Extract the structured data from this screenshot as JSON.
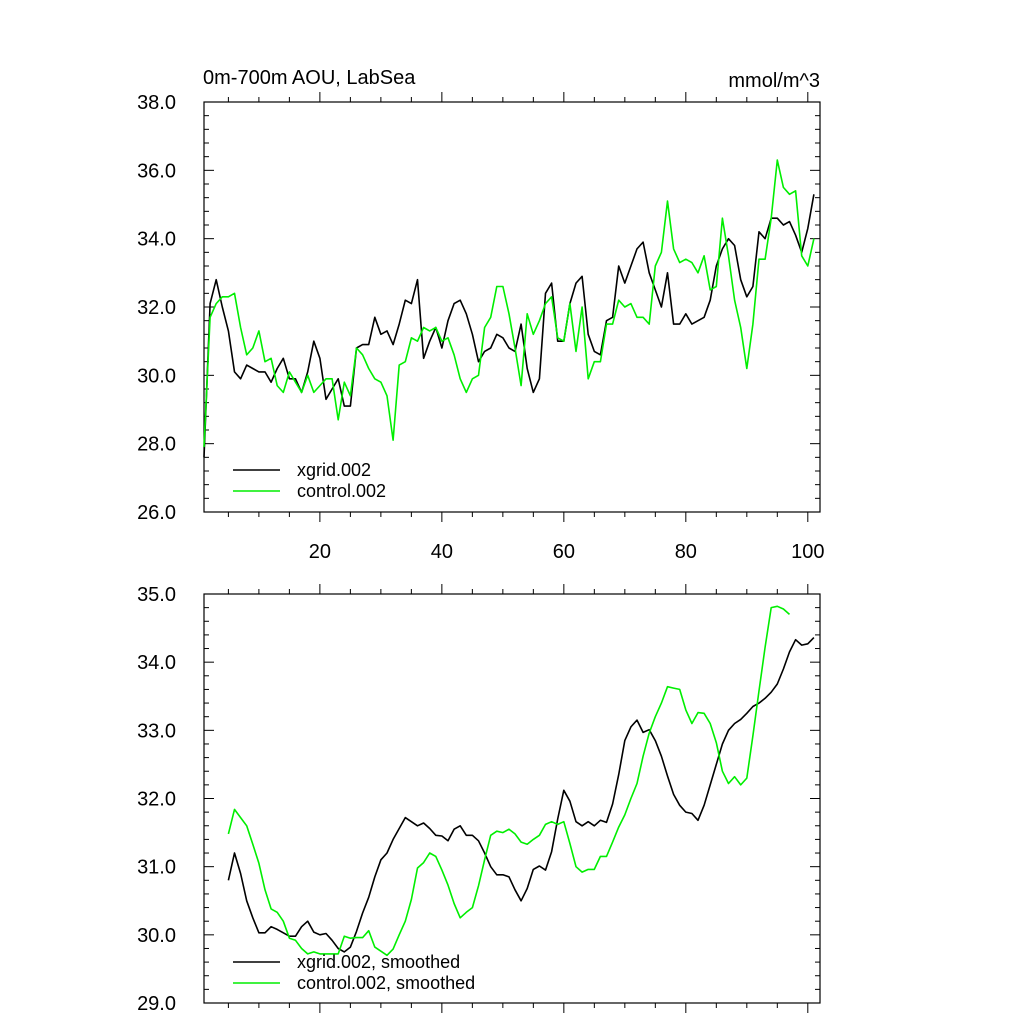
{
  "chart_data": [
    {
      "type": "line",
      "title": "0m-700m AOU, LabSea",
      "units": "mmol/m^3",
      "xlim": [
        1,
        102
      ],
      "ylim": [
        26.0,
        38.0
      ],
      "yticks": [
        26.0,
        28.0,
        30.0,
        32.0,
        34.0,
        36.0,
        38.0
      ],
      "ytick_labels": [
        "26.0",
        "28.0",
        "30.0",
        "32.0",
        "34.0",
        "36.0",
        "38.0"
      ],
      "xticks": [
        20,
        40,
        60,
        80,
        100
      ],
      "xtick_labels": [
        "20",
        "40",
        "60",
        "80",
        "100"
      ],
      "legend_position": "bottom-left",
      "series": [
        {
          "name": "xgrid.002",
          "color": "#000000",
          "x_start": 1,
          "values": [
            27.6,
            32.1,
            32.8,
            32.0,
            31.3,
            30.1,
            29.9,
            30.3,
            30.2,
            30.1,
            30.1,
            29.8,
            30.2,
            30.5,
            29.9,
            29.9,
            29.5,
            30.1,
            31.0,
            30.5,
            29.3,
            29.6,
            29.9,
            29.1,
            29.1,
            30.8,
            30.9,
            30.9,
            31.7,
            31.2,
            31.3,
            30.9,
            31.5,
            32.2,
            32.1,
            32.8,
            30.5,
            31.0,
            31.4,
            30.8,
            31.6,
            32.1,
            32.2,
            31.8,
            31.2,
            30.4,
            30.7,
            30.8,
            31.2,
            31.1,
            30.8,
            30.7,
            31.5,
            30.2,
            29.5,
            29.9,
            32.4,
            32.7,
            31.0,
            31.0,
            32.1,
            32.7,
            32.9,
            31.2,
            30.7,
            30.6,
            31.6,
            31.7,
            33.2,
            32.7,
            33.2,
            33.7,
            33.9,
            33.0,
            32.5,
            32.0,
            33.0,
            31.5,
            31.5,
            31.8,
            31.5,
            31.6,
            31.7,
            32.2,
            33.2,
            33.7,
            34.0,
            33.8,
            32.8,
            32.3,
            32.6,
            34.2,
            34.0,
            34.6,
            34.6,
            34.4,
            34.5,
            34.1,
            33.6,
            34.3,
            35.3
          ]
        },
        {
          "name": "control.002",
          "color": "#00ee00",
          "x_start": 1,
          "values": [
            27.9,
            31.7,
            32.1,
            32.3,
            32.3,
            32.4,
            31.4,
            30.6,
            30.8,
            31.3,
            30.4,
            30.5,
            29.7,
            29.5,
            30.1,
            29.8,
            29.5,
            30.0,
            29.5,
            29.7,
            29.9,
            29.9,
            28.7,
            29.8,
            29.4,
            30.8,
            30.6,
            30.2,
            29.9,
            29.8,
            29.4,
            28.1,
            30.3,
            30.4,
            31.1,
            31.0,
            31.4,
            31.3,
            31.4,
            31.0,
            31.1,
            30.6,
            29.9,
            29.5,
            29.9,
            30.0,
            31.4,
            31.7,
            32.6,
            32.6,
            31.8,
            30.8,
            29.7,
            31.8,
            31.2,
            31.6,
            32.1,
            32.3,
            31.1,
            31.0,
            32.1,
            30.7,
            32.0,
            29.9,
            30.4,
            30.4,
            31.5,
            31.5,
            32.2,
            32.0,
            32.1,
            31.7,
            31.7,
            31.5,
            33.2,
            33.6,
            35.1,
            33.7,
            33.3,
            33.4,
            33.3,
            33.0,
            33.5,
            32.5,
            32.6,
            34.6,
            33.5,
            32.2,
            31.4,
            30.2,
            31.5,
            33.4,
            33.4,
            34.6,
            36.3,
            35.5,
            35.3,
            35.4,
            33.5,
            33.2,
            34.0
          ]
        }
      ]
    },
    {
      "type": "line",
      "xlim": [
        1,
        102
      ],
      "ylim": [
        29.0,
        35.0
      ],
      "yticks": [
        29.0,
        30.0,
        31.0,
        32.0,
        33.0,
        34.0,
        35.0
      ],
      "ytick_labels": [
        "29.0",
        "30.0",
        "31.0",
        "32.0",
        "33.0",
        "34.0",
        "35.0"
      ],
      "xticks": [
        20,
        40,
        60,
        80,
        100
      ],
      "legend_position": "bottom-left",
      "series": [
        {
          "name": "xgrid.002, smoothed",
          "color": "#000000",
          "x_start": 5,
          "values": [
            30.8,
            31.2,
            30.9,
            30.5,
            30.25,
            30.03,
            30.03,
            30.12,
            30.08,
            30.03,
            29.98,
            29.98,
            30.12,
            30.2,
            30.04,
            30.0,
            30.02,
            29.92,
            29.8,
            29.75,
            29.82,
            30.05,
            30.32,
            30.55,
            30.85,
            31.1,
            31.2,
            31.4,
            31.56,
            31.72,
            31.66,
            31.6,
            31.64,
            31.56,
            31.46,
            31.45,
            31.38,
            31.55,
            31.6,
            31.46,
            31.46,
            31.38,
            31.2,
            31.0,
            30.88,
            30.88,
            30.85,
            30.66,
            30.5,
            30.68,
            30.96,
            31.01,
            30.95,
            31.22,
            31.7,
            32.12,
            31.96,
            31.66,
            31.6,
            31.66,
            31.6,
            31.68,
            31.65,
            31.92,
            32.35,
            32.85,
            33.05,
            33.15,
            32.97,
            33.01,
            32.85,
            32.62,
            32.33,
            32.06,
            31.9,
            31.8,
            31.78,
            31.68,
            31.9,
            32.2,
            32.5,
            32.8,
            33.0,
            33.1,
            33.16,
            33.25,
            33.35,
            33.4,
            33.47,
            33.56,
            33.68,
            33.9,
            34.15,
            34.33,
            34.25,
            34.27,
            34.36
          ]
        },
        {
          "name": "control.002, smoothed",
          "color": "#00ee00",
          "x_start": 5,
          "values": [
            31.48,
            31.84,
            31.72,
            31.6,
            31.33,
            31.05,
            30.66,
            30.38,
            30.33,
            30.2,
            29.95,
            29.92,
            29.8,
            29.72,
            29.75,
            29.72,
            29.72,
            29.72,
            29.72,
            29.98,
            29.95,
            29.96,
            29.96,
            30.06,
            29.82,
            29.76,
            29.7,
            29.79,
            30.0,
            30.2,
            30.52,
            30.98,
            31.06,
            31.2,
            31.15,
            30.95,
            30.73,
            30.46,
            30.25,
            30.33,
            30.4,
            30.72,
            31.1,
            31.46,
            31.52,
            31.5,
            31.55,
            31.48,
            31.36,
            31.33,
            31.4,
            31.46,
            31.62,
            31.66,
            31.62,
            31.66,
            31.34,
            31.0,
            30.92,
            30.96,
            30.96,
            31.15,
            31.15,
            31.36,
            31.58,
            31.76,
            32.0,
            32.22,
            32.62,
            32.96,
            33.2,
            33.4,
            33.64,
            33.62,
            33.6,
            33.3,
            33.1,
            33.26,
            33.25,
            33.1,
            32.82,
            32.4,
            32.22,
            32.32,
            32.2,
            32.3,
            32.92,
            33.58,
            34.22,
            34.8,
            34.82,
            34.78,
            34.7
          ]
        }
      ]
    }
  ]
}
